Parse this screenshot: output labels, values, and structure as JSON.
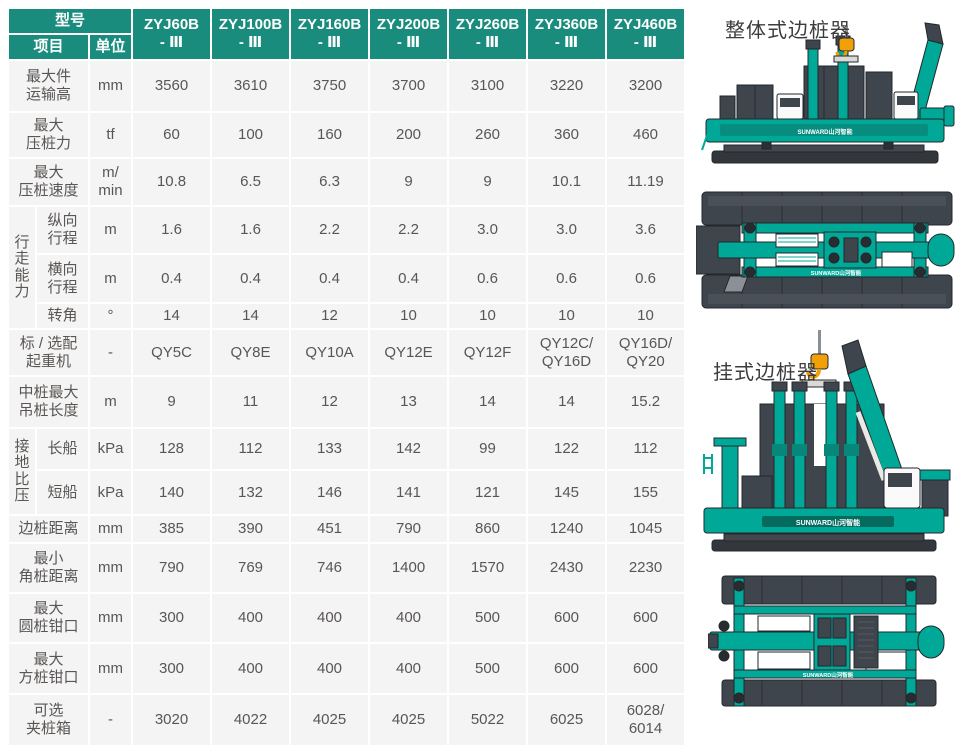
{
  "table": {
    "header": {
      "model_label": "型号",
      "item_label": "项目",
      "unit_label": "单位",
      "models": [
        [
          "ZYJ60B",
          "- Ⅲ"
        ],
        [
          "ZYJ100B",
          "- Ⅲ"
        ],
        [
          "ZYJ160B",
          "- Ⅲ"
        ],
        [
          "ZYJ200B",
          "- Ⅲ"
        ],
        [
          "ZYJ260B",
          "- Ⅲ"
        ],
        [
          "ZYJ360B",
          "- Ⅲ"
        ],
        [
          "ZYJ460B",
          "- Ⅲ"
        ]
      ]
    },
    "rows": [
      {
        "id": "max-transport-height",
        "label": [
          "最大件",
          "运输高"
        ],
        "unit": "mm",
        "values": [
          "3560",
          "3610",
          "3750",
          "3700",
          "3100",
          "3220",
          "3200"
        ]
      },
      {
        "id": "max-pressing-force",
        "label": [
          "最大",
          "压桩力"
        ],
        "unit": "tf",
        "values": [
          "60",
          "100",
          "160",
          "200",
          "260",
          "360",
          "460"
        ]
      },
      {
        "id": "max-pressing-speed",
        "label": [
          "最大",
          "压桩速度"
        ],
        "unit": [
          "m/",
          "min"
        ],
        "values": [
          "10.8",
          "6.5",
          "6.3",
          "9",
          "9",
          "10.1",
          "11.19"
        ]
      },
      {
        "id": "longitudinal-stroke",
        "in_group": true,
        "group": {
          "id": "travel-ability",
          "label": [
            "行",
            "走",
            "能",
            "力"
          ],
          "span": 3
        },
        "label": [
          "纵向",
          "行程"
        ],
        "unit": "m",
        "values": [
          "1.6",
          "1.6",
          "2.2",
          "2.2",
          "3.0",
          "3.0",
          "3.6"
        ]
      },
      {
        "id": "lateral-stroke",
        "in_group": true,
        "label": [
          "横向",
          "行程"
        ],
        "unit": "m",
        "values": [
          "0.4",
          "0.4",
          "0.4",
          "0.4",
          "0.6",
          "0.6",
          "0.6"
        ]
      },
      {
        "id": "slew-angle",
        "in_group": true,
        "label": [
          "转角"
        ],
        "unit": "°",
        "values": [
          "14",
          "14",
          "12",
          "10",
          "10",
          "10",
          "10"
        ]
      },
      {
        "id": "standard-optional-crane",
        "label": [
          "标 / 选配",
          "起重机"
        ],
        "unit": "-",
        "values": [
          "QY5C",
          "QY8E",
          "QY10A",
          "QY12E",
          "QY12F",
          [
            "QY12C/",
            "QY16D"
          ],
          [
            "QY16D/",
            "QY20"
          ]
        ]
      },
      {
        "id": "max-center-pile-length",
        "label": [
          "中桩最大",
          "吊桩长度"
        ],
        "unit": "m",
        "values": [
          "9",
          "11",
          "12",
          "13",
          "14",
          "14",
          "15.2"
        ]
      },
      {
        "id": "long-pontoon-pressure",
        "in_group": true,
        "group": {
          "id": "ground-contact-pressure",
          "label": [
            "接",
            "地",
            "比",
            "压"
          ],
          "span": 2
        },
        "label": [
          "长船"
        ],
        "unit": "kPa",
        "values": [
          "128",
          "112",
          "133",
          "142",
          "99",
          "122",
          "112"
        ]
      },
      {
        "id": "short-pontoon-pressure",
        "in_group": true,
        "label": [
          "短船"
        ],
        "unit": "kPa",
        "values": [
          "140",
          "132",
          "146",
          "141",
          "121",
          "145",
          "155"
        ]
      },
      {
        "id": "side-pile-distance",
        "label": [
          "边桩距离"
        ],
        "unit": "mm",
        "values": [
          "385",
          "390",
          "451",
          "790",
          "860",
          "1240",
          "1045"
        ]
      },
      {
        "id": "min-corner-pile-distance",
        "label": [
          "最小",
          "角桩距离"
        ],
        "unit": "mm",
        "values": [
          "790",
          "769",
          "746",
          "1400",
          "1570",
          "2430",
          "2230"
        ]
      },
      {
        "id": "max-round-pile-jaw",
        "label": [
          "最大",
          "圆桩钳口"
        ],
        "unit": "mm",
        "values": [
          "300",
          "400",
          "400",
          "400",
          "500",
          "600",
          "600"
        ]
      },
      {
        "id": "max-square-pile-jaw",
        "label": [
          "最大",
          "方桩钳口"
        ],
        "unit": "mm",
        "values": [
          "300",
          "400",
          "400",
          "400",
          "500",
          "600",
          "600"
        ]
      },
      {
        "id": "optional-pile-clamp-box",
        "label": [
          "可选",
          "夹桩箱"
        ],
        "unit": "-",
        "values": [
          "3020",
          "4022",
          "4025",
          "4025",
          "5022",
          "6025",
          [
            "6028/",
            "6014"
          ]
        ]
      }
    ]
  },
  "panel": {
    "integral_label": "整体式边桩器",
    "hanging_label": "挂式边桩器",
    "brand": "SUNWARD山河智能"
  },
  "colors": {
    "header_teal": "#1a8c7e",
    "machine_teal": "#00a897",
    "machine_dark": "#3f454c",
    "hook_orange": "#f2a007",
    "cell_gray": "#f4f4f4",
    "text_gray": "#595654"
  }
}
